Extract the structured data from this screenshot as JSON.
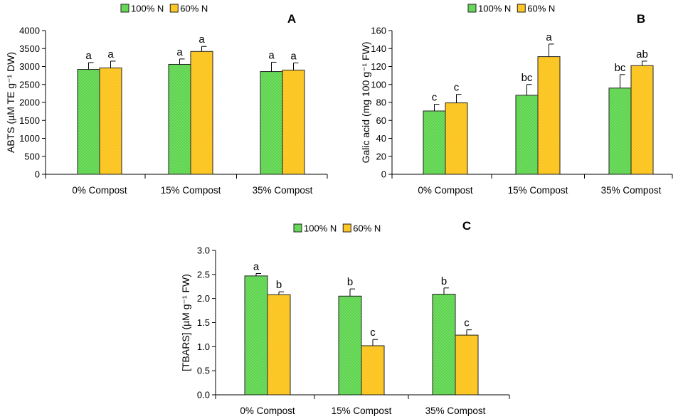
{
  "colors": {
    "green": "#5ad44a",
    "yellow": "#fcc215",
    "outline": "#222222"
  },
  "chart_data": [
    {
      "type": "bar",
      "panel": "A",
      "categories": [
        "0% Compost",
        "15% Compost",
        "35% Compost"
      ],
      "series": [
        {
          "name": "100% N",
          "values": [
            2920,
            3060,
            2860
          ],
          "errors": [
            190,
            150,
            260
          ],
          "letters": [
            "a",
            "a",
            "a"
          ]
        },
        {
          "name": "60% N",
          "values": [
            2960,
            3420,
            2900
          ],
          "errors": [
            190,
            140,
            200
          ],
          "letters": [
            "a",
            "a",
            "a"
          ]
        }
      ],
      "ylabel": "ABTS (µM TE g⁻¹ DW)",
      "ylim": [
        0,
        4000
      ],
      "yticks": [
        "0",
        "500",
        "1000",
        "1500",
        "2000",
        "2500",
        "3000",
        "3500",
        "4000"
      ],
      "legend": "top"
    },
    {
      "type": "bar",
      "panel": "B",
      "categories": [
        "0% Compost",
        "15% Compost",
        "35% Compost"
      ],
      "series": [
        {
          "name": "100% N",
          "values": [
            70.5,
            88,
            96
          ],
          "errors": [
            7.5,
            12,
            15
          ],
          "letters": [
            "c",
            "bc",
            "bc"
          ]
        },
        {
          "name": "60% N",
          "values": [
            79.5,
            131,
            121
          ],
          "errors": [
            9.5,
            14,
            5
          ],
          "letters": [
            "c",
            "a",
            "ab"
          ]
        }
      ],
      "ylabel": "Galic acid (mg 100 g⁻¹ FW)",
      "ylim": [
        0,
        160
      ],
      "yticks": [
        "0",
        "20",
        "40",
        "60",
        "80",
        "100",
        "120",
        "140",
        "160"
      ],
      "legend": "top"
    },
    {
      "type": "bar",
      "panel": "C",
      "categories": [
        "0% Compost",
        "15% Compost",
        "35% Compost"
      ],
      "series": [
        {
          "name": "100% N",
          "values": [
            2.47,
            2.05,
            2.09
          ],
          "errors": [
            0.05,
            0.15,
            0.13
          ],
          "letters": [
            "a",
            "b",
            "b"
          ]
        },
        {
          "name": "60% N",
          "values": [
            2.08,
            1.02,
            1.24
          ],
          "errors": [
            0.06,
            0.13,
            0.11
          ],
          "letters": [
            "b",
            "c",
            "c"
          ]
        }
      ],
      "ylabel": "[TBARS] (µM g⁻¹ FW)",
      "ylim": [
        0,
        3
      ],
      "yticks": [
        "0.0",
        "0.5",
        "1.0",
        "1.5",
        "2.0",
        "2.5",
        "3.0"
      ],
      "legend": "top"
    }
  ]
}
